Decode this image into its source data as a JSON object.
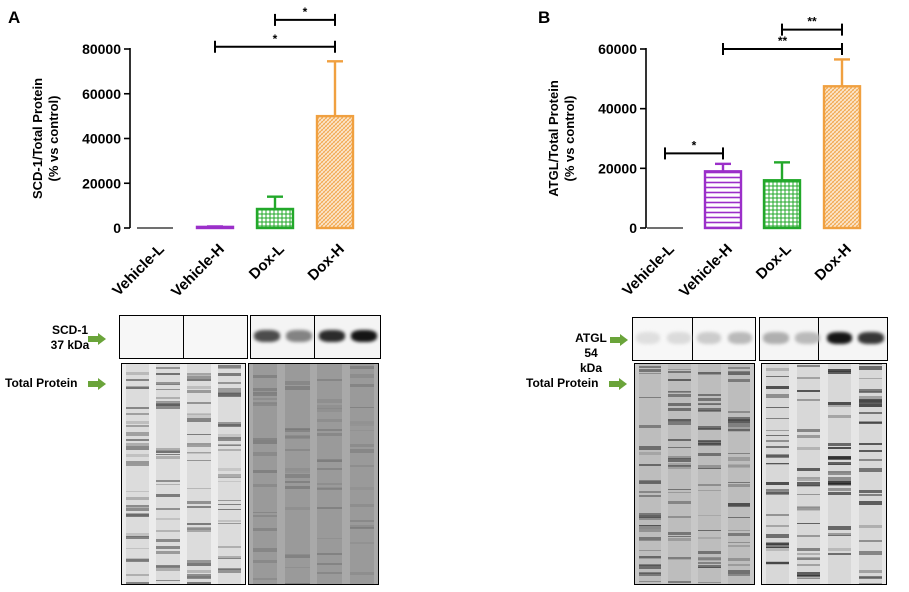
{
  "panels": [
    {
      "letter": "A",
      "blot": {
        "target_label_line1": "SCD-1",
        "target_label_line2": "37 kDa",
        "total_label": "Total Protein",
        "target_band_levels": [
          0,
          0,
          0,
          0,
          0.7,
          0.45,
          0.85,
          0.95
        ]
      }
    },
    {
      "letter": "B",
      "blot": {
        "target_label_line1": "ATGL",
        "target_label_line2": "54 kDa",
        "total_label": "Total Protein",
        "target_band_levels": [
          0.03,
          0.05,
          0.12,
          0.2,
          0.25,
          0.2,
          0.95,
          0.8
        ]
      }
    }
  ],
  "chart_data": [
    {
      "type": "bar",
      "panel": "A",
      "ylabel_line1": "SCD-1/Total Protein",
      "ylabel_line2": "(% vs control)",
      "ylim": [
        0,
        80000
      ],
      "yticks": [
        0,
        20000,
        40000,
        60000,
        80000
      ],
      "ytick_labels": [
        "0",
        "20000",
        "40000",
        "60000",
        "80000"
      ],
      "categories": [
        "Vehicle-L",
        "Vehicle-H",
        "Dox-L",
        "Dox-H"
      ],
      "values": [
        0,
        500,
        8500,
        50000
      ],
      "errors": [
        0,
        200,
        5500,
        24500
      ],
      "colors": [
        "#1a1a1a",
        "#9b2fc9",
        "#22a82a",
        "#f0a040"
      ],
      "patterns": [
        "none",
        "horizontal",
        "grid",
        "dots"
      ],
      "significance": [
        {
          "from": "Dox-L",
          "to": "Dox-H",
          "label": "*",
          "y": 93000
        },
        {
          "from": "Vehicle-H",
          "to": "Dox-H",
          "label": "*",
          "y": 81000
        }
      ]
    },
    {
      "type": "bar",
      "panel": "B",
      "ylabel_line1": "ATGL/Total Protein",
      "ylabel_line2": "(% vs control)",
      "ylim": [
        0,
        60000
      ],
      "yticks": [
        0,
        20000,
        40000,
        60000
      ],
      "ytick_labels": [
        "0",
        "20000",
        "40000",
        "60000"
      ],
      "categories": [
        "Vehicle-L",
        "Vehicle-H",
        "Dox-L",
        "Dox-H"
      ],
      "values": [
        0,
        19000,
        16000,
        47500
      ],
      "errors": [
        0,
        2500,
        6000,
        9000
      ],
      "colors": [
        "#1a1a1a",
        "#9b2fc9",
        "#22a82a",
        "#f0a040"
      ],
      "patterns": [
        "none",
        "horizontal",
        "grid",
        "dots"
      ],
      "significance": [
        {
          "from": "Dox-L",
          "to": "Dox-H",
          "label": "**",
          "y": 66500
        },
        {
          "from": "Vehicle-H",
          "to": "Dox-H",
          "label": "**",
          "y": 60000
        },
        {
          "from": "Vehicle-L",
          "to": "Vehicle-H",
          "label": "*",
          "y": 25000
        }
      ]
    }
  ]
}
